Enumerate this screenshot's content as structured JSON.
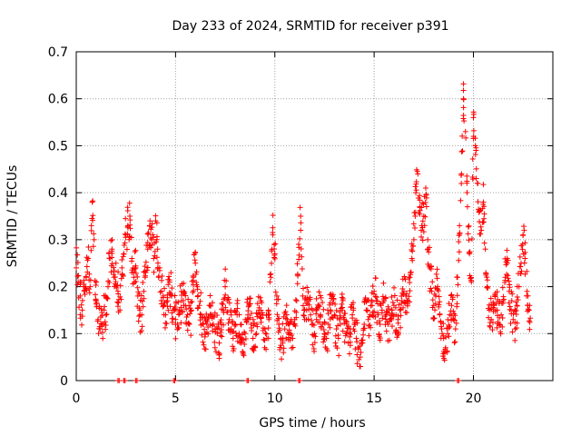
{
  "chart_data": {
    "type": "scatter",
    "title": "Day 233 of 2024, SRMTID for receiver p391",
    "xlabel": "GPS time / hours",
    "ylabel": "SRMTID / TECUs",
    "xlim": [
      0,
      24
    ],
    "ylim": [
      0,
      0.7
    ],
    "xticks": [
      0,
      5,
      10,
      15,
      20
    ],
    "xtick_labels": [
      "0",
      "5",
      "10",
      "15",
      "20"
    ],
    "yticks": [
      0,
      0.1,
      0.2,
      0.3,
      0.4,
      0.5,
      0.6,
      0.7
    ],
    "ytick_labels": [
      "0",
      "0.1",
      "0.2",
      "0.3",
      "0.4",
      "0.5",
      "0.6",
      "0.7"
    ],
    "grid": true,
    "marker": "+",
    "color": "#ff0000",
    "series": [
      {
        "name": "p391",
        "x": [
          0.0,
          0.1,
          0.2,
          0.3,
          0.4,
          0.5,
          0.6,
          0.7,
          0.8,
          0.9,
          1.0,
          1.1,
          1.2,
          1.3,
          1.4,
          1.5,
          1.6,
          1.7,
          1.8,
          1.9,
          2.0,
          2.1,
          2.2,
          2.3,
          2.4,
          2.5,
          2.6,
          2.7,
          2.8,
          2.9,
          3.0,
          3.1,
          3.2,
          3.3,
          3.4,
          3.5,
          3.6,
          3.7,
          3.8,
          3.9,
          4.0,
          4.1,
          4.2,
          4.3,
          4.4,
          4.5,
          4.6,
          4.7,
          4.8,
          4.9,
          5.0,
          5.1,
          5.2,
          5.3,
          5.4,
          5.5,
          5.6,
          5.7,
          5.8,
          5.9,
          6.0,
          6.1,
          6.2,
          6.3,
          6.4,
          6.5,
          6.6,
          6.7,
          6.8,
          6.9,
          7.0,
          7.1,
          7.2,
          7.3,
          7.4,
          7.5,
          7.6,
          7.7,
          7.8,
          7.9,
          8.0,
          8.1,
          8.2,
          8.3,
          8.4,
          8.5,
          8.6,
          8.7,
          8.8,
          8.9,
          9.0,
          9.1,
          9.2,
          9.3,
          9.4,
          9.5,
          9.6,
          9.7,
          9.8,
          9.9,
          10.0,
          10.1,
          10.2,
          10.3,
          10.4,
          10.5,
          10.6,
          10.7,
          10.8,
          10.9,
          11.0,
          11.1,
          11.2,
          11.3,
          11.4,
          11.5,
          11.6,
          11.7,
          11.8,
          11.9,
          12.0,
          12.1,
          12.2,
          12.3,
          12.4,
          12.5,
          12.6,
          12.7,
          12.8,
          12.9,
          13.0,
          13.1,
          13.2,
          13.3,
          13.4,
          13.5,
          13.6,
          13.7,
          13.8,
          13.9,
          14.0,
          14.1,
          14.2,
          14.3,
          14.4,
          14.5,
          14.6,
          14.7,
          14.8,
          14.9,
          15.0,
          15.1,
          15.2,
          15.3,
          15.4,
          15.5,
          15.6,
          15.7,
          15.8,
          15.9,
          16.0,
          16.1,
          16.2,
          16.3,
          16.4,
          16.5,
          16.6,
          16.7,
          16.8,
          16.9,
          17.0,
          17.1,
          17.2,
          17.3,
          17.4,
          17.5,
          17.6,
          17.7,
          17.8,
          17.9,
          18.0,
          18.1,
          18.2,
          18.3,
          18.4,
          18.5,
          18.6,
          18.7,
          18.8,
          18.9,
          19.0,
          19.1,
          19.2,
          19.3,
          19.4,
          19.5,
          19.6,
          19.7,
          19.8,
          19.9,
          20.0,
          20.1,
          20.2,
          20.3,
          20.4,
          20.5,
          20.6,
          20.7,
          20.8,
          20.9,
          21.0,
          21.1,
          21.2,
          21.3,
          21.4,
          21.5,
          21.6,
          21.7,
          21.8,
          21.9,
          22.0,
          22.1,
          22.2,
          22.3,
          22.4,
          22.5,
          22.6,
          22.7,
          22.8
        ],
        "y": [
          0.24,
          0.21,
          0.18,
          0.15,
          0.19,
          0.22,
          0.26,
          0.2,
          0.38,
          0.3,
          0.17,
          0.13,
          0.11,
          0.12,
          0.15,
          0.14,
          0.2,
          0.26,
          0.28,
          0.22,
          0.25,
          0.19,
          0.15,
          0.24,
          0.27,
          0.31,
          0.33,
          0.35,
          0.26,
          0.22,
          0.24,
          0.18,
          0.15,
          0.14,
          0.19,
          0.23,
          0.28,
          0.33,
          0.3,
          0.26,
          0.34,
          0.28,
          0.24,
          0.19,
          0.16,
          0.14,
          0.17,
          0.21,
          0.18,
          0.15,
          0.13,
          0.12,
          0.15,
          0.17,
          0.19,
          0.16,
          0.14,
          0.12,
          0.15,
          0.22,
          0.25,
          0.2,
          0.16,
          0.14,
          0.12,
          0.1,
          0.13,
          0.16,
          0.14,
          0.12,
          0.11,
          0.1,
          0.08,
          0.12,
          0.15,
          0.2,
          0.17,
          0.13,
          0.11,
          0.09,
          0.12,
          0.14,
          0.1,
          0.08,
          0.06,
          0.1,
          0.13,
          0.16,
          0.12,
          0.09,
          0.07,
          0.12,
          0.15,
          0.17,
          0.14,
          0.11,
          0.09,
          0.13,
          0.22,
          0.31,
          0.27,
          0.18,
          0.12,
          0.09,
          0.08,
          0.11,
          0.14,
          0.12,
          0.1,
          0.09,
          0.13,
          0.17,
          0.29,
          0.35,
          0.18,
          0.13,
          0.15,
          0.17,
          0.14,
          0.12,
          0.1,
          0.13,
          0.16,
          0.14,
          0.12,
          0.1,
          0.09,
          0.12,
          0.15,
          0.18,
          0.14,
          0.11,
          0.09,
          0.12,
          0.15,
          0.13,
          0.1,
          0.08,
          0.11,
          0.14,
          0.12,
          0.09,
          0.07,
          0.05,
          0.08,
          0.12,
          0.15,
          0.13,
          0.14,
          0.16,
          0.19,
          0.17,
          0.14,
          0.12,
          0.15,
          0.17,
          0.14,
          0.12,
          0.13,
          0.15,
          0.16,
          0.14,
          0.13,
          0.15,
          0.17,
          0.19,
          0.18,
          0.17,
          0.22,
          0.26,
          0.3,
          0.4,
          0.44,
          0.37,
          0.33,
          0.35,
          0.41,
          0.3,
          0.24,
          0.19,
          0.16,
          0.18,
          0.2,
          0.14,
          0.11,
          0.09,
          0.07,
          0.1,
          0.14,
          0.16,
          0.13,
          0.11,
          0.22,
          0.33,
          0.44,
          0.6,
          0.53,
          0.37,
          0.27,
          0.21,
          0.56,
          0.5,
          0.42,
          0.36,
          0.32,
          0.38,
          0.28,
          0.2,
          0.15,
          0.13,
          0.16,
          0.18,
          0.15,
          0.12,
          0.14,
          0.17,
          0.22,
          0.25,
          0.19,
          0.15,
          0.13,
          0.11,
          0.16,
          0.2,
          0.25,
          0.31,
          0.26,
          0.19,
          0.15
        ]
      }
    ],
    "zero_points_x": [
      2.1,
      2.4,
      3.0,
      4.9,
      8.6,
      11.2,
      19.2
    ]
  }
}
